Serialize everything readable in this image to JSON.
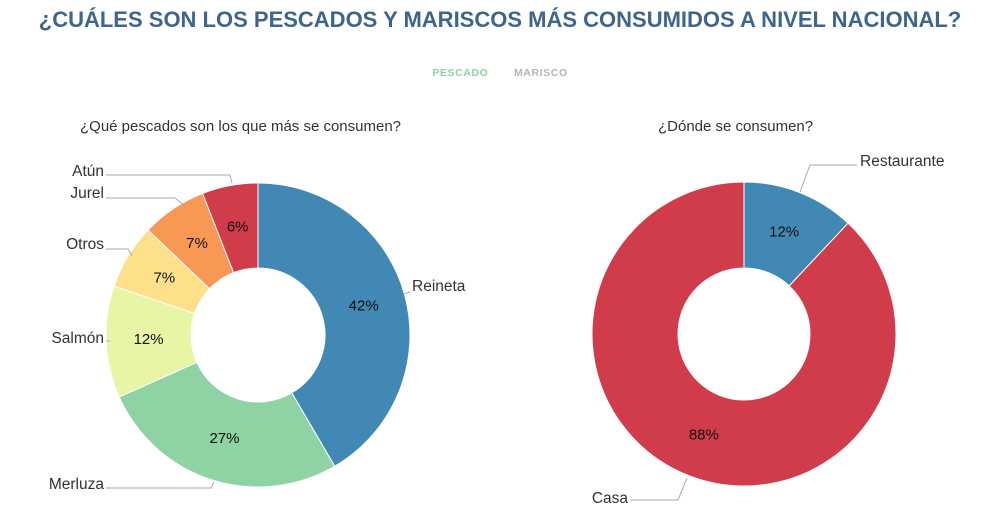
{
  "title": "¿CUÁLES SON LOS PESCADOS Y MARISCOS MÁS CONSUMIDOS A NIVEL NACIONAL?",
  "tabs": [
    {
      "label": "PESCADO",
      "active": true
    },
    {
      "label": "MARISCO",
      "active": false
    }
  ],
  "chart_data": [
    {
      "type": "pie",
      "variant": "donut",
      "title": "¿Qué pescados son los que más se consumen?",
      "categories": [
        "Reineta",
        "Merluza",
        "Salmón",
        "Otros",
        "Jurel",
        "Atún"
      ],
      "values": [
        42,
        27,
        12,
        7,
        7,
        6
      ],
      "value_labels": [
        "42%",
        "27%",
        "12%",
        "7%",
        "7%",
        "6%"
      ],
      "colors": [
        "#4188b4",
        "#8fd2a4",
        "#e8f5a4",
        "#fee08b",
        "#f99855",
        "#d13c4b"
      ]
    },
    {
      "type": "pie",
      "variant": "donut",
      "title": "¿Dónde se consumen?",
      "categories": [
        "Restaurante",
        "Casa"
      ],
      "values": [
        12,
        88
      ],
      "value_labels": [
        "12%",
        "88%"
      ],
      "colors": [
        "#4188b4",
        "#d13c4b"
      ]
    }
  ]
}
